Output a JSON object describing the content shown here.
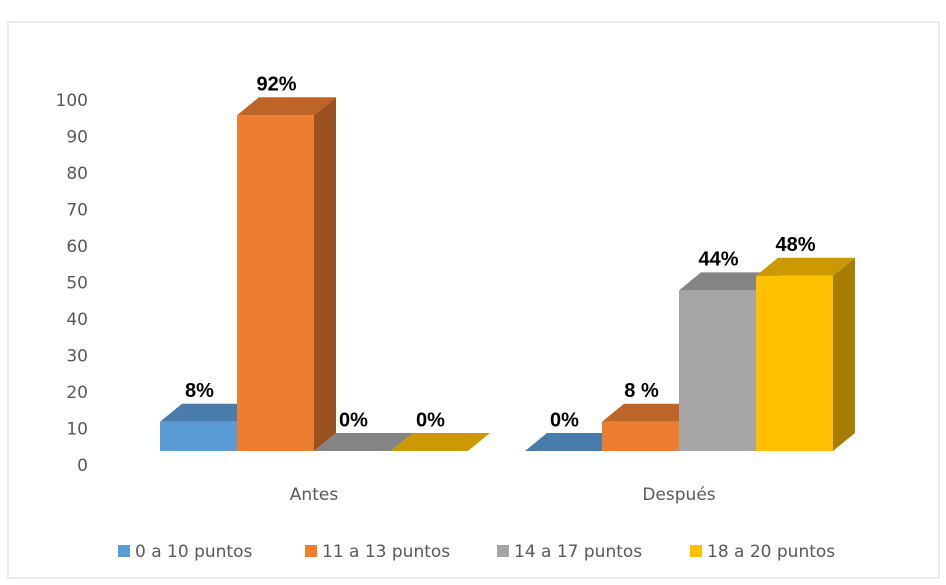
{
  "chart_data": {
    "type": "bar3d",
    "categories": [
      "Antes",
      "Después"
    ],
    "series": [
      {
        "name": "0 a 10 puntos",
        "color": "#5b9bd5",
        "values": [
          8,
          0
        ],
        "value_labels": [
          "8%",
          "0%"
        ]
      },
      {
        "name": "11 a 13 puntos",
        "color": "#ed7d31",
        "values": [
          92,
          8
        ],
        "value_labels": [
          "92%",
          "8 %"
        ]
      },
      {
        "name": "14 a 17 puntos",
        "color": "#a5a5a5",
        "values": [
          0,
          44
        ],
        "value_labels": [
          "0%",
          "44%"
        ]
      },
      {
        "name": "18 a 20 puntos",
        "color": "#ffc000",
        "values": [
          0,
          48
        ],
        "value_labels": [
          "0%",
          "48%"
        ]
      }
    ],
    "ylim": [
      0,
      100
    ],
    "yticks": [
      0,
      10,
      20,
      30,
      40,
      50,
      60,
      70,
      80,
      90,
      100
    ],
    "grid": false,
    "legend": "bottom"
  }
}
